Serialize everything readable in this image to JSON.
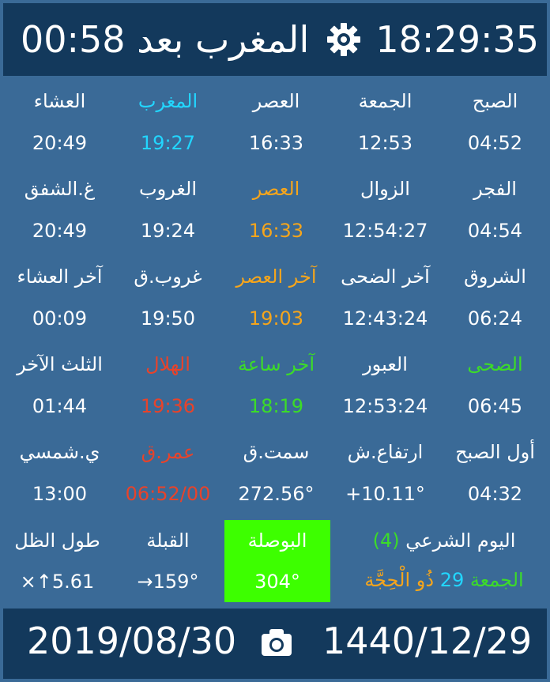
{
  "header": {
    "countdown": "المغرب بعد 00:58",
    "clock": "18:29:35",
    "settings_icon": "gear-icon"
  },
  "rows": [
    [
      {
        "label": "الصبح",
        "value": "04:52",
        "label_color": "white",
        "value_color": "white"
      },
      {
        "label": "الجمعة",
        "value": "12:53",
        "label_color": "white",
        "value_color": "white"
      },
      {
        "label": "العصر",
        "value": "16:33",
        "label_color": "white",
        "value_color": "white"
      },
      {
        "label": "المغرب",
        "value": "19:27",
        "label_color": "cyan",
        "value_color": "cyan"
      },
      {
        "label": "العشاء",
        "value": "20:49",
        "label_color": "white",
        "value_color": "white"
      }
    ],
    [
      {
        "label": "الفجر",
        "value": "04:54",
        "label_color": "white",
        "value_color": "white"
      },
      {
        "label": "الزوال",
        "value": "12:54:27",
        "label_color": "white",
        "value_color": "white"
      },
      {
        "label": "العصر",
        "value": "16:33",
        "label_color": "orange",
        "value_color": "orange"
      },
      {
        "label": "الغروب",
        "value": "19:24",
        "label_color": "white",
        "value_color": "white"
      },
      {
        "label": "غ.الشفق",
        "value": "20:49",
        "label_color": "white",
        "value_color": "white"
      }
    ],
    [
      {
        "label": "الشروق",
        "value": "06:24",
        "label_color": "white",
        "value_color": "white"
      },
      {
        "label": "آخر الضحى",
        "value": "12:43:24",
        "label_color": "white",
        "value_color": "white"
      },
      {
        "label": "آخر العصر",
        "value": "19:03",
        "label_color": "orange",
        "value_color": "orange"
      },
      {
        "label": "غروب.ق",
        "value": "19:50",
        "label_color": "white",
        "value_color": "white"
      },
      {
        "label": "آخر العشاء",
        "value": "00:09",
        "label_color": "white",
        "value_color": "white"
      }
    ],
    [
      {
        "label": "الضحى",
        "value": "06:45",
        "label_color": "green",
        "value_color": "white"
      },
      {
        "label": "العبور",
        "value": "12:53:24",
        "label_color": "white",
        "value_color": "white"
      },
      {
        "label": "آخر ساعة",
        "value": "18:19",
        "label_color": "green",
        "value_color": "green"
      },
      {
        "label": "الهلال",
        "value": "19:36",
        "label_color": "red",
        "value_color": "red"
      },
      {
        "label": "الثلث الآخر",
        "value": "01:44",
        "label_color": "white",
        "value_color": "white"
      }
    ],
    [
      {
        "label": "أول الصبح",
        "value": "04:32",
        "label_color": "white",
        "value_color": "white"
      },
      {
        "label": "ارتفاع.ش",
        "value": "+10.11°",
        "label_color": "white",
        "value_color": "white"
      },
      {
        "label": "سمت.ق",
        "value": "272.56°",
        "label_color": "white",
        "value_color": "white"
      },
      {
        "label": "عمر.ق",
        "value": "06:52/00",
        "label_color": "red",
        "value_color": "red"
      },
      {
        "label": "ي.شمسي",
        "value": "13:00",
        "label_color": "white",
        "value_color": "white"
      }
    ]
  ],
  "last_row": {
    "sharia_day_label": "اليوم الشرعي",
    "sharia_day_count": "(4)",
    "hijri_weekday": "الجمعة",
    "hijri_day": "29",
    "hijri_month": "ذُو الْحِجَّة",
    "compass_label": "البوصلة",
    "compass_value": "304°",
    "qibla_label": "القبلة",
    "qibla_value": "159°→",
    "shadow_label": "طول الظل",
    "shadow_value": "5.61↑×"
  },
  "footer": {
    "gregorian_date": "2019/08/30",
    "hijri_date": "1440/12/29",
    "camera_icon": "camera-icon"
  },
  "colors": {
    "background": "#3a6a97",
    "bar": "#13395c",
    "cyan": "#22d6ff",
    "orange": "#f5a51c",
    "green": "#3cdc28",
    "red": "#e8432a",
    "compass_bg": "#3dff00"
  }
}
